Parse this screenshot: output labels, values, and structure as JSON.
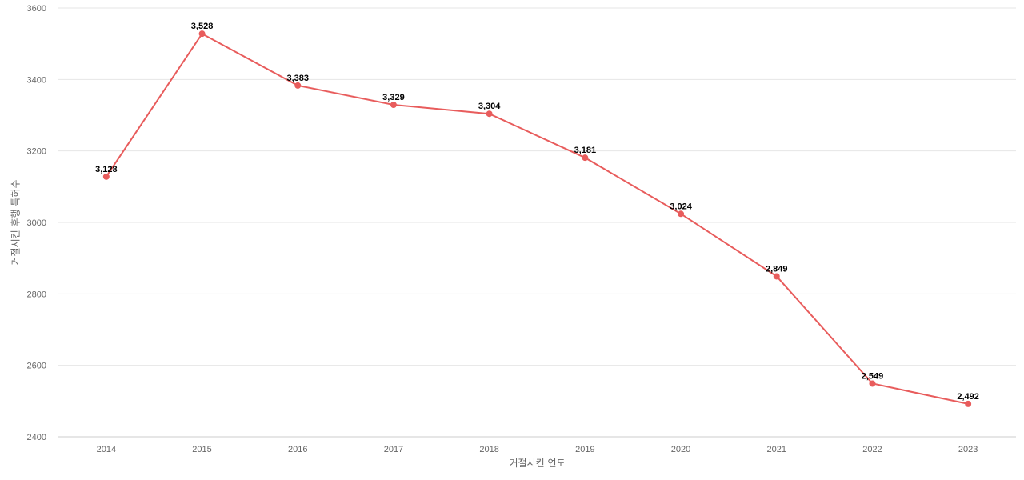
{
  "chart_data": {
    "type": "line",
    "title": "",
    "xlabel": "거절시킨 연도",
    "ylabel": "거절시킨 후행 특허수",
    "x": [
      "2014",
      "2015",
      "2016",
      "2017",
      "2018",
      "2019",
      "2020",
      "2021",
      "2022",
      "2023"
    ],
    "series": [
      {
        "values": [
          3128,
          3528,
          3383,
          3329,
          3304,
          3181,
          3024,
          2849,
          2549,
          2492
        ],
        "labels": [
          "3,128",
          "3,528",
          "3,383",
          "3,329",
          "3,304",
          "3,181",
          "3,024",
          "2,849",
          "2,549",
          "2,492"
        ],
        "color": "#e85c5c"
      }
    ],
    "ylim": [
      2400,
      3600
    ],
    "yticks": [
      "2400",
      "2600",
      "2800",
      "3000",
      "3200",
      "3400",
      "3600"
    ],
    "grid": true,
    "legend": "none"
  }
}
